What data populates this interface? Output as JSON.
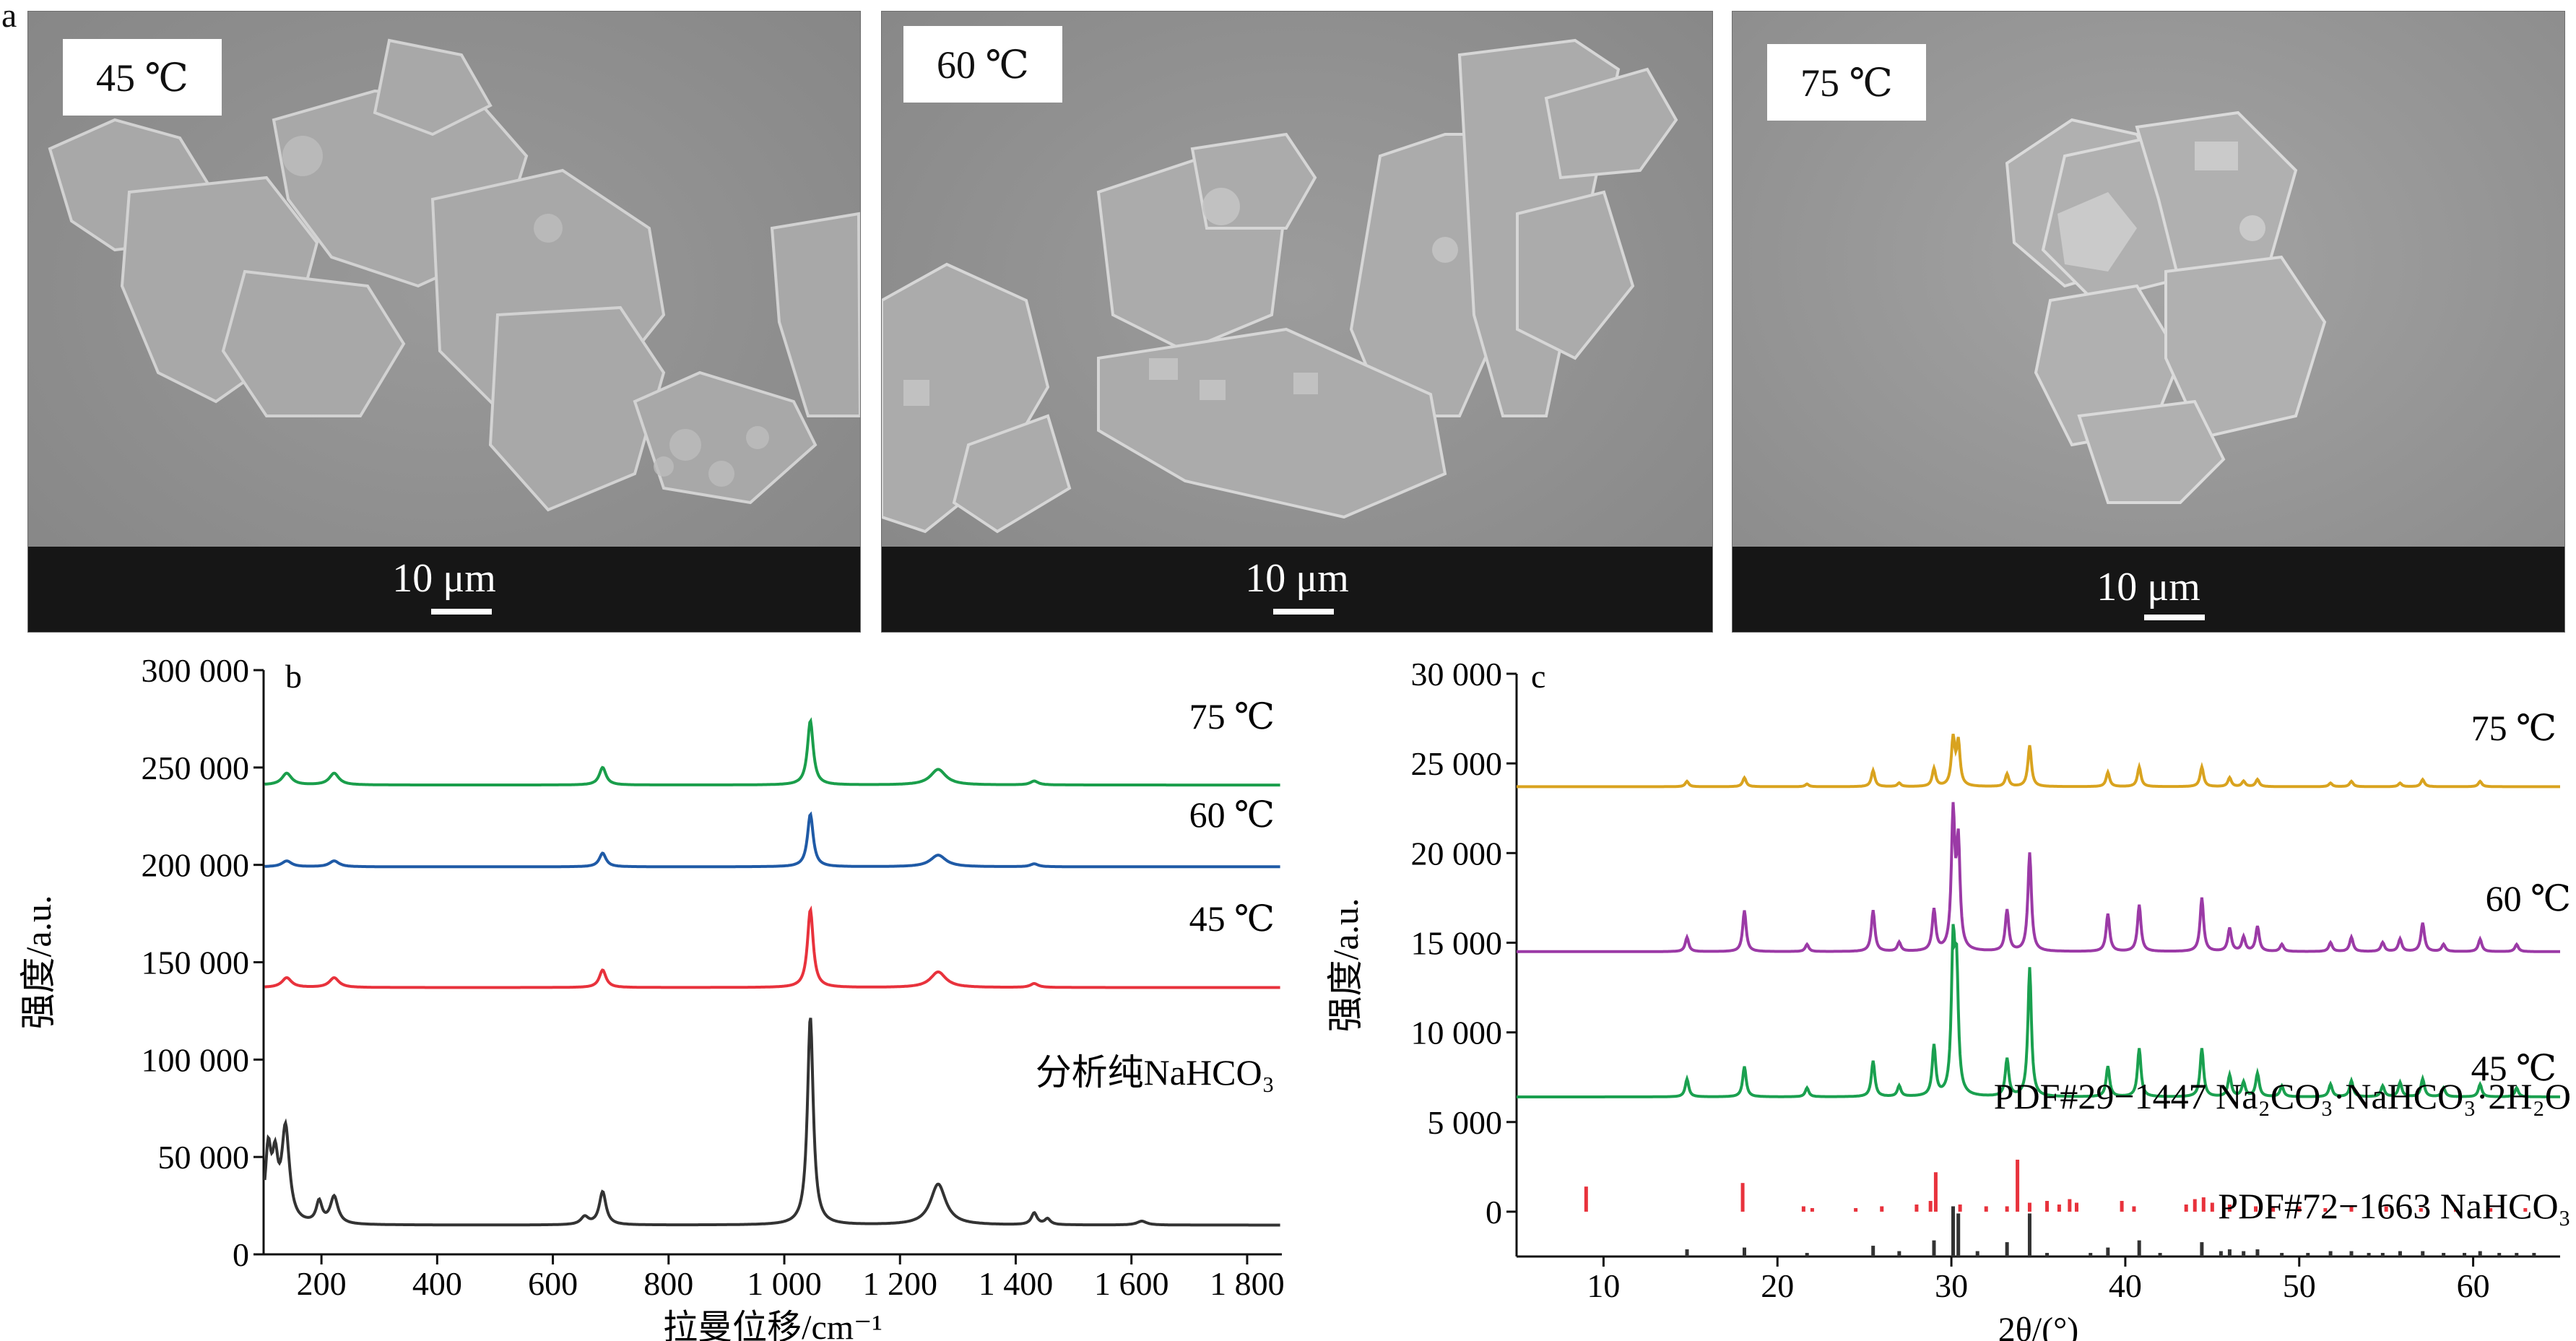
{
  "panel_a": {
    "letter": "a",
    "images": [
      {
        "label": "45 ℃",
        "scale_bar": "10 μm"
      },
      {
        "label": "60 ℃",
        "scale_bar": "10 μm"
      },
      {
        "label": "75 ℃",
        "scale_bar": "10 μm"
      }
    ]
  },
  "chart_data": [
    {
      "panel": "b",
      "type": "line",
      "xlabel": "拉曼位移/cm⁻¹",
      "ylabel": "强度/a.u.",
      "xlim": [
        100,
        1860
      ],
      "ylim": [
        0,
        300000
      ],
      "x_ticks": [
        "200",
        "400",
        "600",
        "800",
        "1 000",
        "1 200",
        "1 400",
        "1 600",
        "1 800"
      ],
      "y_ticks": [
        "0",
        "50 000",
        "100 000",
        "150 000",
        "200 000",
        "250 000",
        "300 000"
      ],
      "series": [
        {
          "name": "分析纯NaHCO₃",
          "color": "#333333",
          "baseline": 15000,
          "peaks": [
            [
              108,
              36000,
              6
            ],
            [
              120,
              28000,
              6
            ],
            [
              138,
              48000,
              8
            ],
            [
              196,
              11000,
              6
            ],
            [
              222,
              14000,
              8
            ],
            [
              655,
              4000,
              8
            ],
            [
              686,
              17000,
              7
            ],
            [
              1045,
              107000,
              6
            ],
            [
              1266,
              21000,
              16
            ],
            [
              1432,
              6000,
              6
            ],
            [
              1455,
              3000,
              6
            ],
            [
              1618,
              2000,
              10
            ]
          ]
        },
        {
          "name": "45 ℃",
          "color": "#e8323c",
          "baseline": 137000,
          "peaks": [
            [
              140,
              5000,
              10
            ],
            [
              222,
              5000,
              10
            ],
            [
              686,
              9000,
              7
            ],
            [
              1045,
              40000,
              6
            ],
            [
              1266,
              8000,
              16
            ],
            [
              1432,
              2000,
              8
            ]
          ]
        },
        {
          "name": "60 ℃",
          "color": "#1f5aa6",
          "baseline": 199000,
          "peaks": [
            [
              140,
              3000,
              10
            ],
            [
              222,
              3000,
              10
            ],
            [
              686,
              7000,
              7
            ],
            [
              1045,
              27000,
              6
            ],
            [
              1266,
              6000,
              16
            ],
            [
              1432,
              1500,
              8
            ]
          ]
        },
        {
          "name": "75 ℃",
          "color": "#1a9e4b",
          "baseline": 241000,
          "peaks": [
            [
              140,
              6000,
              10
            ],
            [
              222,
              6000,
              10
            ],
            [
              686,
              9000,
              7
            ],
            [
              1045,
              33000,
              6
            ],
            [
              1266,
              8000,
              16
            ],
            [
              1432,
              2000,
              8
            ]
          ]
        }
      ]
    },
    {
      "panel": "c",
      "type": "line",
      "xlabel": "2θ/(°)",
      "ylabel": "强度/a.u.",
      "xlim": [
        5,
        65
      ],
      "ylim": [
        -2500,
        30000
      ],
      "x_ticks": [
        "10",
        "20",
        "30",
        "40",
        "50",
        "60"
      ],
      "y_ticks": [
        "0",
        "5 000",
        "10 000",
        "15 000",
        "20 000",
        "25 000",
        "30 000"
      ],
      "series": [
        {
          "name": "45 ℃",
          "color": "#1aa04f",
          "baseline": 6400,
          "peaks": [
            [
              14.8,
              1000
            ],
            [
              18.1,
              1700
            ],
            [
              21.7,
              500
            ],
            [
              25.5,
              2000
            ],
            [
              27.0,
              600
            ],
            [
              29.0,
              2800
            ],
            [
              30.1,
              7900
            ],
            [
              30.3,
              6400
            ],
            [
              33.2,
              2100
            ],
            [
              34.5,
              7200
            ],
            [
              39.0,
              1700
            ],
            [
              40.8,
              2700
            ],
            [
              44.4,
              2700
            ],
            [
              46.0,
              1200
            ],
            [
              46.8,
              800
            ],
            [
              47.6,
              1300
            ],
            [
              49.0,
              600
            ],
            [
              51.8,
              700
            ],
            [
              53.0,
              900
            ],
            [
              54.8,
              600
            ],
            [
              55.8,
              800
            ],
            [
              57.1,
              1000
            ],
            [
              58.3,
              500
            ],
            [
              60.4,
              700
            ],
            [
              62.5,
              500
            ]
          ]
        },
        {
          "name": "60 ℃",
          "color": "#9b3aa6",
          "baseline": 14500,
          "peaks": [
            [
              14.8,
              800
            ],
            [
              18.1,
              2300
            ],
            [
              21.7,
              400
            ],
            [
              25.5,
              2300
            ],
            [
              27.0,
              500
            ],
            [
              29.0,
              2300
            ],
            [
              30.1,
              7500
            ],
            [
              30.4,
              5800
            ],
            [
              33.2,
              2300
            ],
            [
              34.5,
              5500
            ],
            [
              39.0,
              2100
            ],
            [
              40.8,
              2600
            ],
            [
              44.4,
              3000
            ],
            [
              46.0,
              1300
            ],
            [
              46.8,
              800
            ],
            [
              47.6,
              1400
            ],
            [
              49.0,
              400
            ],
            [
              51.8,
              500
            ],
            [
              53.0,
              800
            ],
            [
              54.8,
              500
            ],
            [
              55.8,
              700
            ],
            [
              57.1,
              1600
            ],
            [
              58.3,
              400
            ],
            [
              60.4,
              700
            ],
            [
              62.5,
              400
            ]
          ]
        },
        {
          "name": "75 ℃",
          "color": "#d9a31f",
          "baseline": 23700,
          "peaks": [
            [
              14.8,
              300
            ],
            [
              18.1,
              500
            ],
            [
              21.7,
              150
            ],
            [
              25.5,
              900
            ],
            [
              27.0,
              200
            ],
            [
              29.0,
              1000
            ],
            [
              30.1,
              2600
            ],
            [
              30.4,
              2400
            ],
            [
              33.2,
              700
            ],
            [
              34.5,
              2300
            ],
            [
              39.0,
              800
            ],
            [
              40.8,
              1100
            ],
            [
              44.4,
              1100
            ],
            [
              46.0,
              500
            ],
            [
              46.8,
              300
            ],
            [
              47.6,
              400
            ],
            [
              51.8,
              200
            ],
            [
              53.0,
              300
            ],
            [
              55.8,
              200
            ],
            [
              57.1,
              400
            ],
            [
              60.4,
              300
            ]
          ]
        }
      ],
      "reference_patterns": [
        {
          "name": "PDF#29−1447 Na₂CO₃·NaHCO₃·2H₂O",
          "color": "#e8323c",
          "baseline": 0,
          "lines": [
            [
              9.0,
              1400
            ],
            [
              18.0,
              1600
            ],
            [
              21.5,
              300
            ],
            [
              22.0,
              200
            ],
            [
              24.5,
              200
            ],
            [
              26.0,
              300
            ],
            [
              28.0,
              400
            ],
            [
              28.8,
              600
            ],
            [
              29.1,
              2200
            ],
            [
              30.5,
              400
            ],
            [
              32.0,
              300
            ],
            [
              33.2,
              300
            ],
            [
              33.8,
              2900
            ],
            [
              34.5,
              500
            ],
            [
              35.5,
              600
            ],
            [
              36.2,
              400
            ],
            [
              36.8,
              700
            ],
            [
              37.2,
              500
            ],
            [
              39.8,
              600
            ],
            [
              40.5,
              300
            ],
            [
              43.5,
              400
            ],
            [
              44.0,
              700
            ],
            [
              44.5,
              800
            ],
            [
              45.0,
              500
            ],
            [
              46.0,
              400
            ],
            [
              47.5,
              300
            ],
            [
              48.5,
              300
            ],
            [
              50.0,
              300
            ],
            [
              51.5,
              200
            ],
            [
              53.0,
              300
            ],
            [
              55.0,
              300
            ],
            [
              57.0,
              200
            ],
            [
              59.0,
              200
            ],
            [
              61.0,
              200
            ],
            [
              63.0,
              200
            ]
          ]
        },
        {
          "name": "PDF#72−1663 NaHCO₃",
          "color": "#333333",
          "baseline": -2500,
          "lines": [
            [
              14.8,
              400
            ],
            [
              18.1,
              500
            ],
            [
              21.7,
              200
            ],
            [
              25.5,
              600
            ],
            [
              27.0,
              300
            ],
            [
              29.0,
              900
            ],
            [
              30.1,
              2800
            ],
            [
              30.4,
              2400
            ],
            [
              31.5,
              300
            ],
            [
              33.2,
              800
            ],
            [
              34.5,
              2400
            ],
            [
              35.5,
              200
            ],
            [
              38.0,
              200
            ],
            [
              39.0,
              500
            ],
            [
              40.8,
              900
            ],
            [
              42.0,
              200
            ],
            [
              44.4,
              800
            ],
            [
              45.5,
              300
            ],
            [
              46.0,
              400
            ],
            [
              46.8,
              300
            ],
            [
              47.6,
              400
            ],
            [
              49.0,
              200
            ],
            [
              50.5,
              200
            ],
            [
              51.8,
              300
            ],
            [
              53.0,
              300
            ],
            [
              54.0,
              200
            ],
            [
              54.8,
              200
            ],
            [
              55.8,
              300
            ],
            [
              57.1,
              300
            ],
            [
              58.3,
              200
            ],
            [
              59.5,
              200
            ],
            [
              60.4,
              300
            ],
            [
              61.5,
              200
            ],
            [
              62.5,
              200
            ],
            [
              63.5,
              200
            ]
          ]
        }
      ]
    }
  ]
}
